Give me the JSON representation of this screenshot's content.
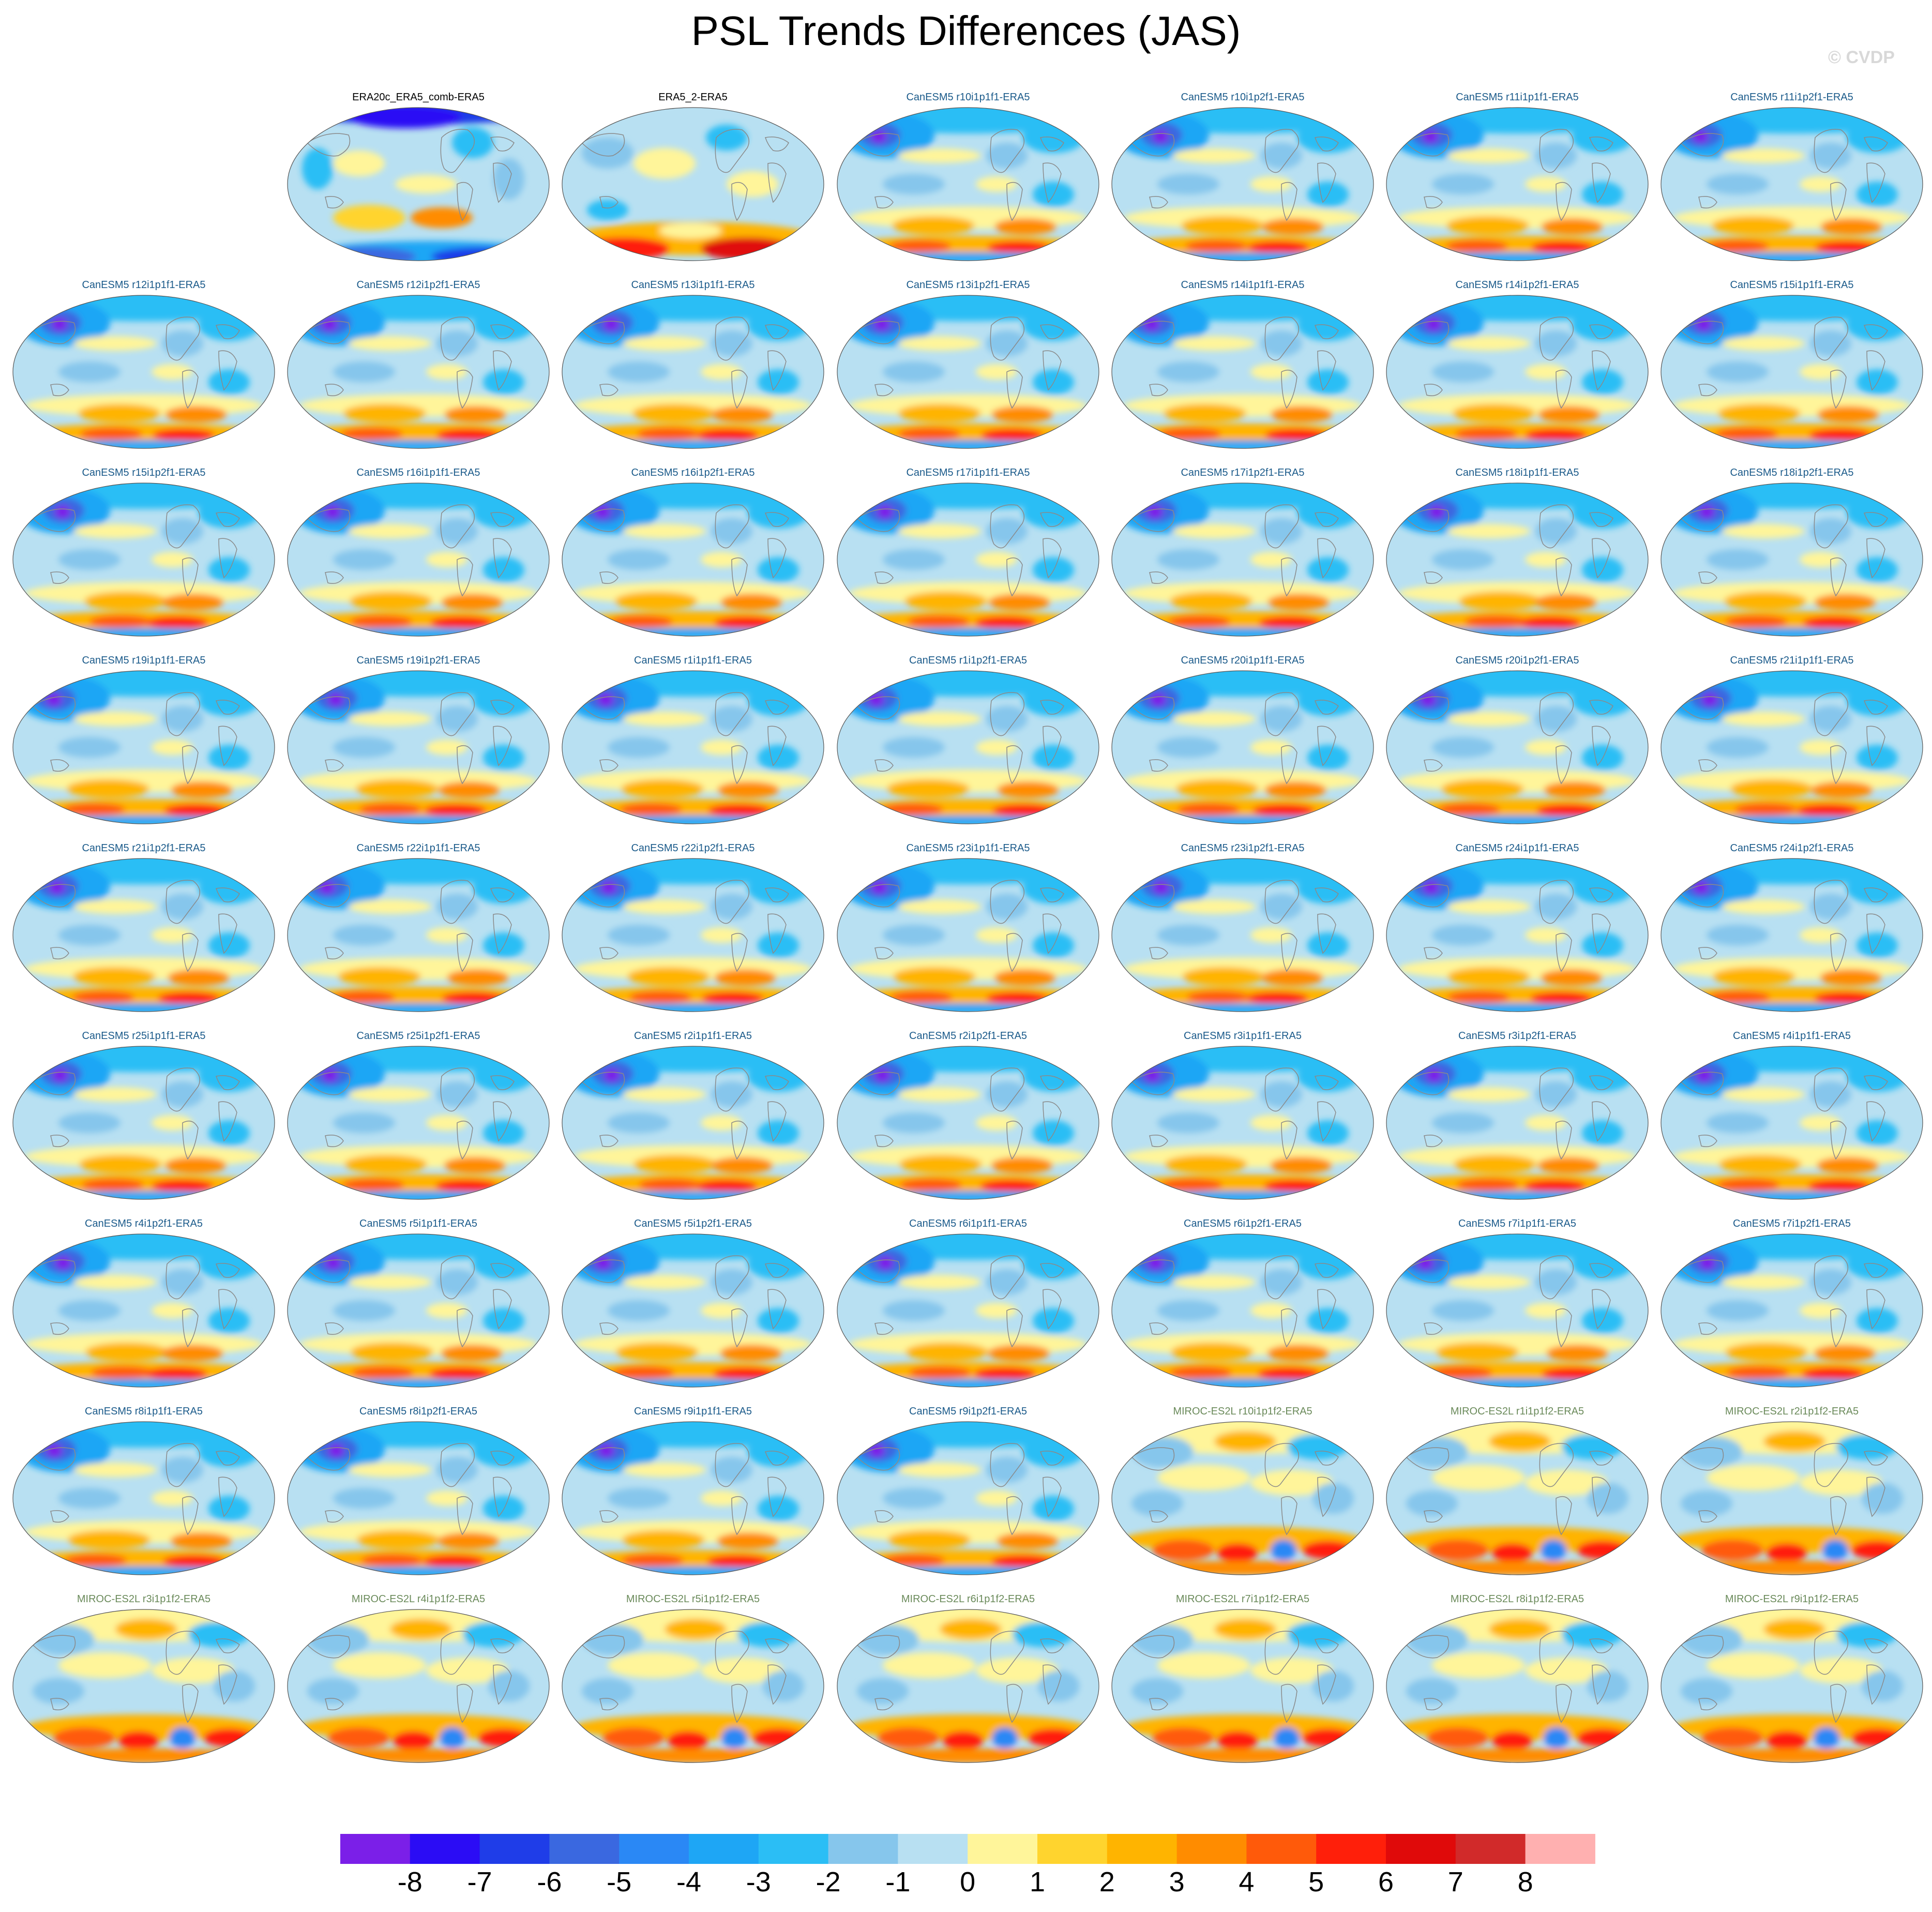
{
  "title": "PSL Trends Differences (JAS)",
  "watermark": "© CVDP",
  "colors": {
    "title_obs": "#000000",
    "title_canesm": "#1a5a8a",
    "title_miroc": "#6a8a5a",
    "coast": "#8a8a8a"
  },
  "colorbar": {
    "colors": [
      "#7b1fe8",
      "#2b0cf5",
      "#1f3de8",
      "#3a68e0",
      "#2a88f5",
      "#1ea6f5",
      "#2bbef5",
      "#86c6ec",
      "#b8e0f2",
      "#fff59a",
      "#ffd42e",
      "#ffb400",
      "#ff8c00",
      "#ff5a0a",
      "#ff1f0a",
      "#e00a0a",
      "#d12a2a",
      "#ffb0b0"
    ],
    "labels": [
      "-8",
      "-7",
      "-6",
      "-5",
      "-4",
      "-3",
      "-2",
      "-1",
      "0",
      "1",
      "2",
      "3",
      "4",
      "5",
      "6",
      "7",
      "8"
    ]
  },
  "panels": [
    {
      "title": "ERA20c_ERA5_comb-ERA5",
      "group": "obs"
    },
    {
      "title": "ERA5_2-ERA5",
      "group": "obs"
    },
    {
      "title": "CanESM5 r10i1p1f1-ERA5",
      "group": "canesm"
    },
    {
      "title": "CanESM5 r10i1p2f1-ERA5",
      "group": "canesm"
    },
    {
      "title": "CanESM5 r11i1p1f1-ERA5",
      "group": "canesm"
    },
    {
      "title": "CanESM5 r11i1p2f1-ERA5",
      "group": "canesm"
    },
    {
      "title": "CanESM5 r12i1p1f1-ERA5",
      "group": "canesm"
    },
    {
      "title": "CanESM5 r12i1p2f1-ERA5",
      "group": "canesm"
    },
    {
      "title": "CanESM5 r13i1p1f1-ERA5",
      "group": "canesm"
    },
    {
      "title": "CanESM5 r13i1p2f1-ERA5",
      "group": "canesm"
    },
    {
      "title": "CanESM5 r14i1p1f1-ERA5",
      "group": "canesm"
    },
    {
      "title": "CanESM5 r14i1p2f1-ERA5",
      "group": "canesm"
    },
    {
      "title": "CanESM5 r15i1p1f1-ERA5",
      "group": "canesm"
    },
    {
      "title": "CanESM5 r15i1p2f1-ERA5",
      "group": "canesm"
    },
    {
      "title": "CanESM5 r16i1p1f1-ERA5",
      "group": "canesm"
    },
    {
      "title": "CanESM5 r16i1p2f1-ERA5",
      "group": "canesm"
    },
    {
      "title": "CanESM5 r17i1p1f1-ERA5",
      "group": "canesm"
    },
    {
      "title": "CanESM5 r17i1p2f1-ERA5",
      "group": "canesm"
    },
    {
      "title": "CanESM5 r18i1p1f1-ERA5",
      "group": "canesm"
    },
    {
      "title": "CanESM5 r18i1p2f1-ERA5",
      "group": "canesm"
    },
    {
      "title": "CanESM5 r19i1p1f1-ERA5",
      "group": "canesm"
    },
    {
      "title": "CanESM5 r19i1p2f1-ERA5",
      "group": "canesm"
    },
    {
      "title": "CanESM5 r1i1p1f1-ERA5",
      "group": "canesm"
    },
    {
      "title": "CanESM5 r1i1p2f1-ERA5",
      "group": "canesm"
    },
    {
      "title": "CanESM5 r20i1p1f1-ERA5",
      "group": "canesm"
    },
    {
      "title": "CanESM5 r20i1p2f1-ERA5",
      "group": "canesm"
    },
    {
      "title": "CanESM5 r21i1p1f1-ERA5",
      "group": "canesm"
    },
    {
      "title": "CanESM5 r21i1p2f1-ERA5",
      "group": "canesm"
    },
    {
      "title": "CanESM5 r22i1p1f1-ERA5",
      "group": "canesm"
    },
    {
      "title": "CanESM5 r22i1p2f1-ERA5",
      "group": "canesm"
    },
    {
      "title": "CanESM5 r23i1p1f1-ERA5",
      "group": "canesm"
    },
    {
      "title": "CanESM5 r23i1p2f1-ERA5",
      "group": "canesm"
    },
    {
      "title": "CanESM5 r24i1p1f1-ERA5",
      "group": "canesm"
    },
    {
      "title": "CanESM5 r24i1p2f1-ERA5",
      "group": "canesm"
    },
    {
      "title": "CanESM5 r25i1p1f1-ERA5",
      "group": "canesm"
    },
    {
      "title": "CanESM5 r25i1p2f1-ERA5",
      "group": "canesm"
    },
    {
      "title": "CanESM5 r2i1p1f1-ERA5",
      "group": "canesm"
    },
    {
      "title": "CanESM5 r2i1p2f1-ERA5",
      "group": "canesm"
    },
    {
      "title": "CanESM5 r3i1p1f1-ERA5",
      "group": "canesm"
    },
    {
      "title": "CanESM5 r3i1p2f1-ERA5",
      "group": "canesm"
    },
    {
      "title": "CanESM5 r4i1p1f1-ERA5",
      "group": "canesm"
    },
    {
      "title": "CanESM5 r4i1p2f1-ERA5",
      "group": "canesm"
    },
    {
      "title": "CanESM5 r5i1p1f1-ERA5",
      "group": "canesm"
    },
    {
      "title": "CanESM5 r5i1p2f1-ERA5",
      "group": "canesm"
    },
    {
      "title": "CanESM5 r6i1p1f1-ERA5",
      "group": "canesm"
    },
    {
      "title": "CanESM5 r6i1p2f1-ERA5",
      "group": "canesm"
    },
    {
      "title": "CanESM5 r7i1p1f1-ERA5",
      "group": "canesm"
    },
    {
      "title": "CanESM5 r7i1p2f1-ERA5",
      "group": "canesm"
    },
    {
      "title": "CanESM5 r8i1p1f1-ERA5",
      "group": "canesm"
    },
    {
      "title": "CanESM5 r8i1p2f1-ERA5",
      "group": "canesm"
    },
    {
      "title": "CanESM5 r9i1p1f1-ERA5",
      "group": "canesm"
    },
    {
      "title": "CanESM5 r9i1p2f1-ERA5",
      "group": "canesm"
    },
    {
      "title": "MIROC-ES2L r10i1p1f2-ERA5",
      "group": "miroc"
    },
    {
      "title": "MIROC-ES2L r1i1p1f2-ERA5",
      "group": "miroc"
    },
    {
      "title": "MIROC-ES2L r2i1p1f2-ERA5",
      "group": "miroc"
    },
    {
      "title": "MIROC-ES2L r3i1p1f2-ERA5",
      "group": "miroc"
    },
    {
      "title": "MIROC-ES2L r4i1p1f2-ERA5",
      "group": "miroc"
    },
    {
      "title": "MIROC-ES2L r5i1p1f2-ERA5",
      "group": "miroc"
    },
    {
      "title": "MIROC-ES2L r6i1p1f2-ERA5",
      "group": "miroc"
    },
    {
      "title": "MIROC-ES2L r7i1p1f2-ERA5",
      "group": "miroc"
    },
    {
      "title": "MIROC-ES2L r8i1p1f2-ERA5",
      "group": "miroc"
    },
    {
      "title": "MIROC-ES2L r9i1p1f2-ERA5",
      "group": "miroc"
    }
  ]
}
